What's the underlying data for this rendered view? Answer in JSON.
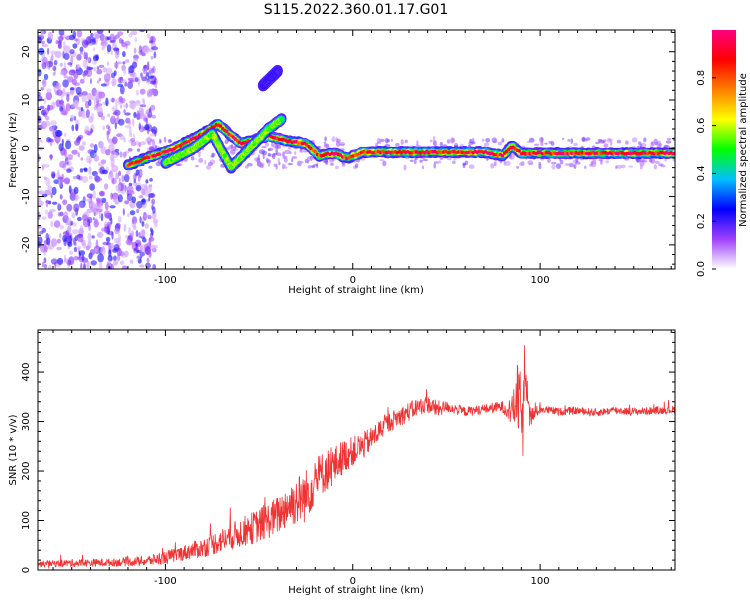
{
  "title": "S115.2022.360.01.17.G01",
  "chart_data": [
    {
      "type": "heatmap",
      "title": "S115.2022.360.01.17.G01",
      "xlabel": "Height of straight line (km)",
      "ylabel": "Frequency (Hz)",
      "xlim": [
        -168,
        172
      ],
      "ylim": [
        -25,
        24.5
      ],
      "xticks": [
        -100,
        0,
        100
      ],
      "xtick_labels": [
        "-100",
        "0",
        "100"
      ],
      "yticks": [
        -20,
        -10,
        0,
        10,
        20
      ],
      "ytick_labels": [
        "-20",
        "-10",
        "0",
        "10",
        "20"
      ],
      "colorbar": {
        "label": "Normalized spectral amplitude",
        "range": [
          0,
          1
        ],
        "ticks": [
          0.0,
          0.2,
          0.4,
          0.6,
          0.8
        ],
        "tick_labels": [
          "0.0",
          "0.2",
          "0.4",
          "0.6",
          "0.8"
        ],
        "colors": [
          "#ffffff",
          "#a040ff",
          "#0000ff",
          "#00c0ff",
          "#00ff00",
          "#ffff00",
          "#ff8000",
          "#ff0000",
          "#ff0080"
        ]
      },
      "ridges": [
        {
          "name": "main",
          "points": [
            [
              -120,
              -3.5
            ],
            [
              -110,
              -2
            ],
            [
              -95,
              0
            ],
            [
              -80,
              3
            ],
            [
              -72,
              5
            ],
            [
              -60,
              1
            ],
            [
              -45,
              2.5
            ],
            [
              -35,
              1.5
            ],
            [
              -25,
              1
            ],
            [
              -18,
              -1.5
            ],
            [
              -10,
              -1
            ],
            [
              -3,
              -2
            ],
            [
              5,
              -0.8
            ],
            [
              40,
              -0.8
            ],
            [
              70,
              -0.8
            ],
            [
              80,
              -1.5
            ],
            [
              85,
              0.5
            ],
            [
              90,
              -1
            ],
            [
              120,
              -1
            ],
            [
              172,
              -1
            ]
          ],
          "amplitude": 0.9
        },
        {
          "name": "lower-branch",
          "points": [
            [
              -100,
              -3
            ],
            [
              -85,
              0
            ],
            [
              -75,
              3
            ],
            [
              -65,
              -4
            ],
            [
              -55,
              0
            ],
            [
              -45,
              4
            ],
            [
              -38,
              6
            ]
          ],
          "amplitude": 0.55
        },
        {
          "name": "upper-trace",
          "points": [
            [
              -48,
              13
            ],
            [
              -40,
              16
            ]
          ],
          "amplitude": 0.2
        }
      ],
      "noise_region_x": [
        -168,
        -105
      ]
    },
    {
      "type": "line",
      "xlabel": "Height of straight line (km)",
      "ylabel": "SNR (10 * v/v)",
      "xlim": [
        -168,
        172
      ],
      "ylim": [
        0,
        485
      ],
      "xticks": [
        -100,
        0,
        100
      ],
      "xtick_labels": [
        "-100",
        "0",
        "100"
      ],
      "yticks": [
        0,
        100,
        200,
        300,
        400
      ],
      "ytick_labels": [
        "0",
        "100",
        "200",
        "300",
        "400"
      ],
      "line_color": "#ee3333",
      "series": [
        {
          "x": [
            -168,
            -150,
            -130,
            -110,
            -100,
            -90,
            -80,
            -70,
            -60,
            -50,
            -40,
            -35,
            -30,
            -25,
            -20,
            -15,
            -10,
            -5,
            0,
            5,
            10,
            15,
            20,
            25,
            30,
            35,
            40,
            45,
            50,
            60,
            70,
            80,
            85,
            88,
            91,
            93,
            95,
            100,
            110,
            120,
            130,
            140,
            150,
            160,
            172
          ],
          "values": [
            12,
            14,
            15,
            18,
            25,
            35,
            45,
            60,
            75,
            90,
            110,
            130,
            140,
            150,
            180,
            200,
            210,
            230,
            240,
            250,
            265,
            285,
            300,
            310,
            320,
            330,
            335,
            325,
            330,
            320,
            325,
            330,
            320,
            350,
            300,
            400,
            310,
            325,
            320,
            322,
            318,
            323,
            320,
            322,
            324
          ],
          "noise_amplitude": [
            6,
            8,
            8,
            10,
            14,
            16,
            20,
            25,
            30,
            35,
            40,
            45,
            50,
            55,
            45,
            45,
            40,
            35,
            30,
            28,
            25,
            22,
            20,
            20,
            20,
            18,
            18,
            18,
            12,
            10,
            10,
            12,
            30,
            70,
            80,
            60,
            20,
            8,
            8,
            8,
            8,
            8,
            8,
            8,
            8
          ]
        }
      ]
    }
  ]
}
